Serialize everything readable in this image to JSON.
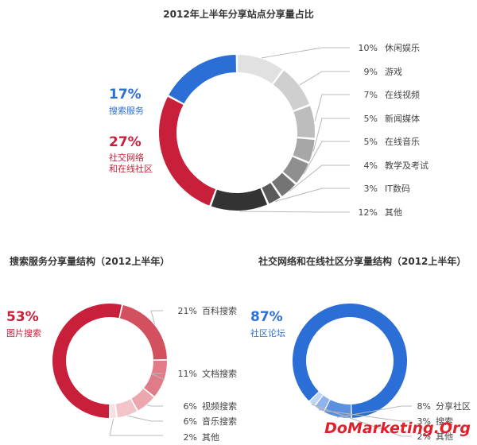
{
  "colors": {
    "blue": "#2b6fd6",
    "red": "#c8203a",
    "watermark": "#e0202a",
    "leader": "#b8b8b8"
  },
  "chart_data": [
    {
      "type": "pie",
      "title": "2012年上半年分享站点分享量占比",
      "slices": [
        {
          "label": "休闲娱乐",
          "value": 10,
          "pct": "10%",
          "color": "#e1e1e1"
        },
        {
          "label": "游戏",
          "value": 9,
          "pct": "9%",
          "color": "#cfcfcf"
        },
        {
          "label": "在线视频",
          "value": 7,
          "pct": "7%",
          "color": "#bdbdbd"
        },
        {
          "label": "新闻媒体",
          "value": 5,
          "pct": "5%",
          "color": "#a7a7a7"
        },
        {
          "label": "在线音乐",
          "value": 5,
          "pct": "5%",
          "color": "#8f8f8f"
        },
        {
          "label": "教学及考试",
          "value": 4,
          "pct": "4%",
          "color": "#747474"
        },
        {
          "label": "IT数码",
          "value": 3,
          "pct": "3%",
          "color": "#5a5a5a"
        },
        {
          "label": "其他",
          "value": 12,
          "pct": "12%",
          "color": "#333333"
        },
        {
          "label": "社交网络\n和在线社区",
          "value": 27,
          "pct": "27%",
          "color": "#c8203a",
          "highlight": true
        },
        {
          "label": "搜索服务",
          "value": 17,
          "pct": "17%",
          "color": "#2b6fd6",
          "highlight": true
        }
      ]
    },
    {
      "type": "pie",
      "title": "搜索服务分享量结构（2012上半年）",
      "slices": [
        {
          "label": "图片搜索",
          "value": 53,
          "pct": "53%",
          "color": "#c8203a",
          "highlight": true
        },
        {
          "label": "百科搜索",
          "value": 21,
          "pct": "21%",
          "color": "#d3505f"
        },
        {
          "label": "文档搜索",
          "value": 11,
          "pct": "11%",
          "color": "#e07b87"
        },
        {
          "label": "视频搜索",
          "value": 6,
          "pct": "6%",
          "color": "#eba6ae"
        },
        {
          "label": "音乐搜索",
          "value": 6,
          "pct": "6%",
          "color": "#f2c4c9"
        },
        {
          "label": "其他",
          "value": 2,
          "pct": "2%",
          "color": "#f8dfe2"
        }
      ]
    },
    {
      "type": "pie",
      "title": "社交网络和在线社区分享量结构（2012上半年）",
      "slices": [
        {
          "label": "社区论坛",
          "value": 87,
          "pct": "87%",
          "color": "#2b6fd6",
          "highlight": true
        },
        {
          "label": "分享社区",
          "value": 8,
          "pct": "8%",
          "color": "#5b90e0"
        },
        {
          "label": "搜索",
          "value": 3,
          "pct": "3%",
          "color": "#8fb3ec"
        },
        {
          "label": "其他",
          "value": 2,
          "pct": "2%",
          "color": "#c1d5f5"
        }
      ]
    }
  ],
  "watermark": "DoMarketing.Org"
}
